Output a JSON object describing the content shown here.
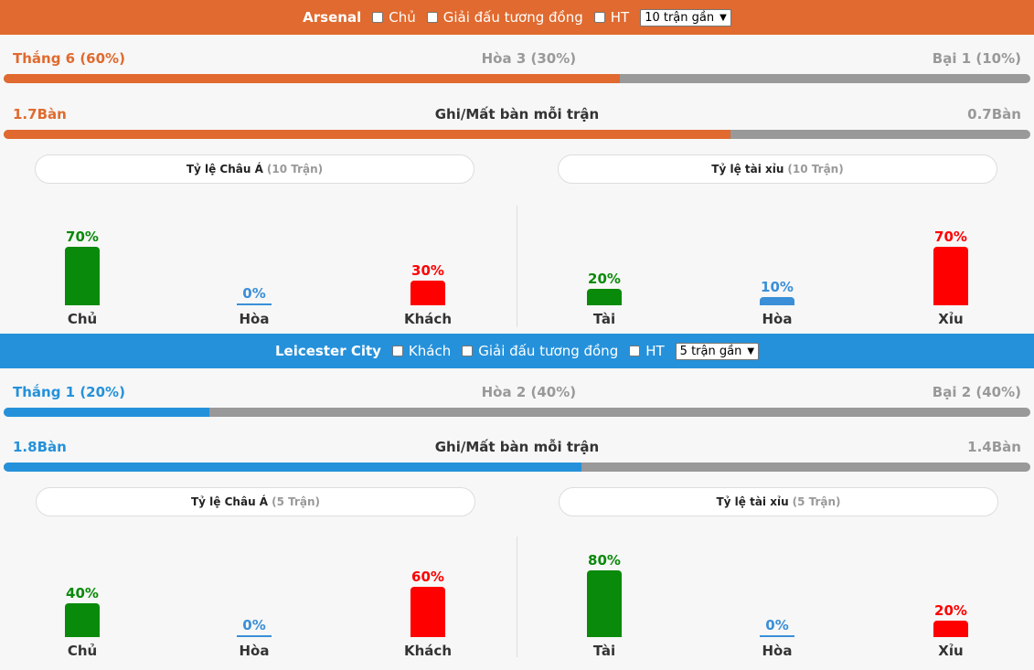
{
  "colors": {
    "home": "#e06a2f",
    "away": "#2591da",
    "green": "#0a8a0a",
    "red": "#ff0000",
    "blue": "#3a8fd8",
    "grey": "#999999"
  },
  "teams": [
    {
      "name": "Arsenal",
      "filter1": "Chủ",
      "filter2": "Giải đấu tương đồng",
      "filter3": "HT",
      "range": "10 trận gần",
      "win": "Thắng 6 (60%)",
      "draw": "Hòa 3 (30%)",
      "loss": "Bại 1 (10%)",
      "win_pct": 60,
      "goals_for": "1.7Bàn",
      "goals_title": "Ghi/Mất bàn mỗi trận",
      "goals_against": "0.7Bàn",
      "goals_ratio": 0.7083,
      "asian_title": "Tỷ lệ Châu Á",
      "asian_sub": "(10 Trận)",
      "ou_title": "Tỷ lệ tài xỉu",
      "ou_sub": "(10 Trận)",
      "asian": [
        {
          "label": "Chủ",
          "pct": "70%",
          "value": 70
        },
        {
          "label": "Hòa",
          "pct": "0%",
          "value": 0
        },
        {
          "label": "Khách",
          "pct": "30%",
          "value": 30
        }
      ],
      "ou": [
        {
          "label": "Tài",
          "pct": "20%",
          "value": 20
        },
        {
          "label": "Hòa",
          "pct": "10%",
          "value": 10
        },
        {
          "label": "Xỉu",
          "pct": "70%",
          "value": 70
        }
      ]
    },
    {
      "name": "Leicester City",
      "filter1": "Khách",
      "filter2": "Giải đấu tương đồng",
      "filter3": "HT",
      "range": "5 trận gần",
      "win": "Thắng 1 (20%)",
      "draw": "Hòa 2 (40%)",
      "loss": "Bại 2 (40%)",
      "win_pct": 20,
      "goals_for": "1.8Bàn",
      "goals_title": "Ghi/Mất bàn mỗi trận",
      "goals_against": "1.4Bàn",
      "goals_ratio": 0.5625,
      "asian_title": "Tỷ lệ Châu Á",
      "asian_sub": "(5 Trận)",
      "ou_title": "Tỷ lệ tài xỉu",
      "ou_sub": "(5 Trận)",
      "asian": [
        {
          "label": "Chủ",
          "pct": "40%",
          "value": 40
        },
        {
          "label": "Hòa",
          "pct": "0%",
          "value": 0
        },
        {
          "label": "Khách",
          "pct": "60%",
          "value": 60
        }
      ],
      "ou": [
        {
          "label": "Tài",
          "pct": "80%",
          "value": 80
        },
        {
          "label": "Hòa",
          "pct": "0%",
          "value": 0
        },
        {
          "label": "Xỉu",
          "pct": "20%",
          "value": 20
        }
      ]
    }
  ]
}
